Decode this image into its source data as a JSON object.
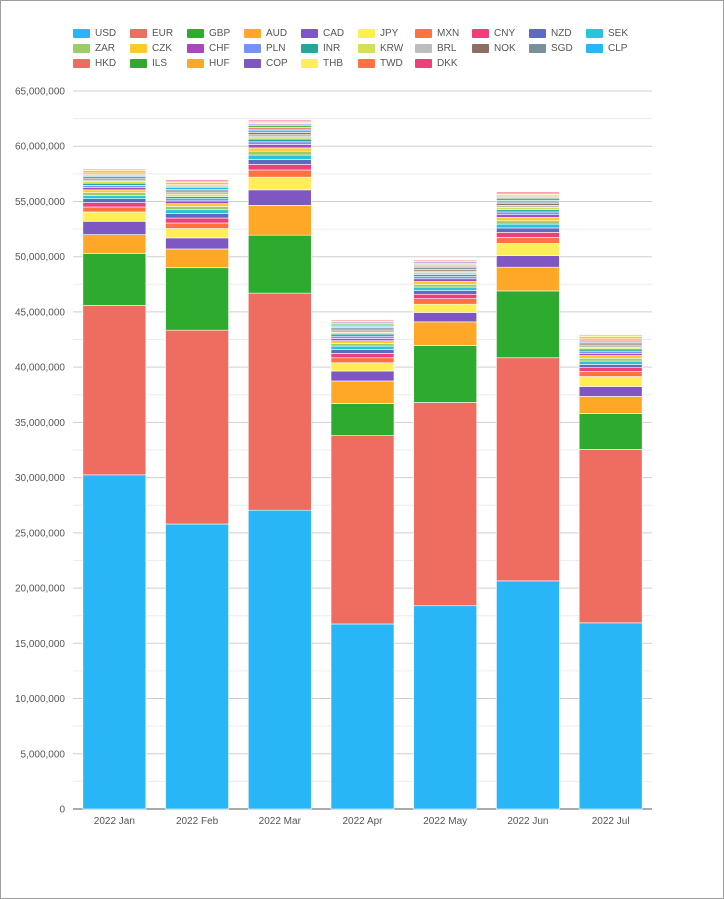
{
  "chart_data": {
    "type": "bar",
    "stacked": true,
    "categories": [
      "2022 Jan",
      "2022 Feb",
      "2022 Mar",
      "2022 Apr",
      "2022 May",
      "2022 Jun",
      "2022 Jul"
    ],
    "ylim": [
      0,
      65000000
    ],
    "yticks": [
      0,
      5000000,
      10000000,
      15000000,
      20000000,
      25000000,
      30000000,
      35000000,
      40000000,
      45000000,
      50000000,
      55000000,
      60000000,
      65000000
    ],
    "ytick_labels": [
      "0",
      "5,000,000",
      "10,000,000",
      "15,000,000",
      "20,000,000",
      "25,000,000",
      "30,000,000",
      "35,000,000",
      "40,000,000",
      "45,000,000",
      "50,000,000",
      "55,000,000",
      "60,000,000",
      "65,000,000"
    ],
    "grid": true,
    "legend_position": "top",
    "series": [
      {
        "name": "USD",
        "color": "#29b6f6",
        "values": [
          30250000,
          25800000,
          27050000,
          16750000,
          18400000,
          20650000,
          16850000
        ]
      },
      {
        "name": "EUR",
        "color": "#ef6c60",
        "values": [
          15350000,
          17550000,
          19650000,
          17050000,
          18400000,
          20200000,
          15700000
        ]
      },
      {
        "name": "GBP",
        "color": "#2eab2e",
        "values": [
          4700000,
          5650000,
          5250000,
          2900000,
          5150000,
          6050000,
          3250000
        ]
      },
      {
        "name": "AUD",
        "color": "#ffa726",
        "values": [
          1700000,
          1700000,
          2700000,
          2050000,
          2150000,
          2150000,
          1550000
        ]
      },
      {
        "name": "CAD",
        "color": "#7e57c2",
        "values": [
          1200000,
          1000000,
          1400000,
          900000,
          850000,
          1050000,
          900000
        ]
      },
      {
        "name": "JPY",
        "color": "#ffee58",
        "values": [
          850000,
          850000,
          1150000,
          750000,
          750000,
          1100000,
          900000
        ]
      },
      {
        "name": "MXN",
        "color": "#ff7043",
        "values": [
          450000,
          500000,
          650000,
          450000,
          500000,
          550000,
          450000
        ]
      },
      {
        "name": "CNY",
        "color": "#ec407a",
        "values": [
          400000,
          450000,
          500000,
          400000,
          400000,
          450000,
          350000
        ]
      },
      {
        "name": "NZD",
        "color": "#5c6bc0",
        "values": [
          350000,
          400000,
          450000,
          350000,
          350000,
          400000,
          300000
        ]
      },
      {
        "name": "SEK",
        "color": "#26c6da",
        "values": [
          300000,
          350000,
          400000,
          300000,
          300000,
          350000,
          300000
        ]
      },
      {
        "name": "ZAR",
        "color": "#9ccc65",
        "values": [
          250000,
          300000,
          350000,
          250000,
          250000,
          300000,
          250000
        ]
      },
      {
        "name": "CZK",
        "color": "#ffca28",
        "values": [
          250000,
          250000,
          300000,
          250000,
          250000,
          300000,
          250000
        ]
      },
      {
        "name": "CHF",
        "color": "#ab47bc",
        "values": [
          200000,
          250000,
          300000,
          200000,
          250000,
          250000,
          200000
        ]
      },
      {
        "name": "PLN",
        "color": "#7593f5",
        "values": [
          200000,
          200000,
          250000,
          200000,
          200000,
          250000,
          200000
        ]
      },
      {
        "name": "INR",
        "color": "#26a69a",
        "values": [
          200000,
          200000,
          250000,
          200000,
          200000,
          200000,
          200000
        ]
      },
      {
        "name": "KRW",
        "color": "#d4e157",
        "values": [
          150000,
          200000,
          200000,
          150000,
          150000,
          200000,
          150000
        ]
      },
      {
        "name": "BRL",
        "color": "#bdbdbd",
        "values": [
          150000,
          150000,
          200000,
          150000,
          150000,
          200000,
          150000
        ]
      },
      {
        "name": "NOK",
        "color": "#8d6e63",
        "values": [
          150000,
          150000,
          200000,
          150000,
          150000,
          150000,
          150000
        ]
      },
      {
        "name": "SGD",
        "color": "#78909c",
        "values": [
          150000,
          150000,
          150000,
          150000,
          150000,
          150000,
          150000
        ]
      },
      {
        "name": "CLP",
        "color": "#29b6f6",
        "values": [
          100000,
          150000,
          150000,
          100000,
          100000,
          150000,
          100000
        ]
      },
      {
        "name": "HKD",
        "color": "#ef6c60",
        "values": [
          100000,
          100000,
          150000,
          100000,
          100000,
          150000,
          100000
        ]
      },
      {
        "name": "ILS",
        "color": "#2eab2e",
        "values": [
          100000,
          100000,
          150000,
          100000,
          100000,
          100000,
          100000
        ]
      },
      {
        "name": "HUF",
        "color": "#ffa726",
        "values": [
          100000,
          100000,
          100000,
          100000,
          100000,
          100000,
          100000
        ]
      },
      {
        "name": "COP",
        "color": "#7e57c2",
        "values": [
          100000,
          100000,
          100000,
          100000,
          100000,
          100000,
          100000
        ]
      },
      {
        "name": "THB",
        "color": "#ffee58",
        "values": [
          100000,
          100000,
          100000,
          100000,
          100000,
          100000,
          100000
        ]
      },
      {
        "name": "TWD",
        "color": "#ff7043",
        "values": [
          100000,
          100000,
          100000,
          100000,
          100000,
          100000,
          100000
        ]
      },
      {
        "name": "DKK",
        "color": "#ec407a",
        "values": [
          50000,
          100000,
          100000,
          50000,
          50000,
          100000,
          50000
        ]
      }
    ]
  }
}
